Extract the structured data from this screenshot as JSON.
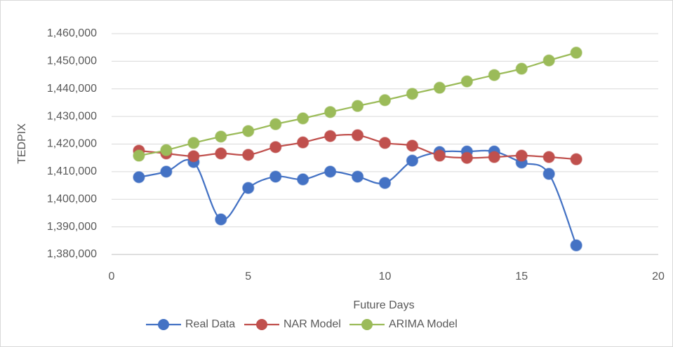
{
  "chart_data": {
    "type": "line",
    "x_label": "Future Days",
    "y_label": "TEDPIX",
    "x": [
      1,
      2,
      3,
      4,
      5,
      6,
      7,
      8,
      9,
      10,
      11,
      12,
      13,
      14,
      15,
      16,
      17
    ],
    "series": [
      {
        "name": "Real Data",
        "color": "#4472c4",
        "values": [
          1408000,
          1410000,
          1413500,
          1392700,
          1404100,
          1408200,
          1407200,
          1410000,
          1408200,
          1405900,
          1414000,
          1417100,
          1417300,
          1417300,
          1413300,
          1409200,
          1383300
        ]
      },
      {
        "name": "NAR Model",
        "color": "#c0504d",
        "values": [
          1417600,
          1416600,
          1415600,
          1416600,
          1416100,
          1418900,
          1420600,
          1422900,
          1423200,
          1420400,
          1419400,
          1415800,
          1415000,
          1415300,
          1415800,
          1415300,
          1414500
        ]
      },
      {
        "name": "ARIMA Model",
        "color": "#9bbb59",
        "values": [
          1415800,
          1417800,
          1420400,
          1422700,
          1424700,
          1427200,
          1429300,
          1431600,
          1433800,
          1435900,
          1438200,
          1440400,
          1442700,
          1445000,
          1447300,
          1450300,
          1453100
        ]
      }
    ],
    "xlim": [
      0,
      20
    ],
    "xticks": [
      0,
      5,
      10,
      15,
      20
    ],
    "ylim": [
      1380000,
      1460000
    ],
    "yticks": [
      {
        "value": 1380000,
        "label": "1,380,000"
      },
      {
        "value": 1390000,
        "label": "1,390,000"
      },
      {
        "value": 1400000,
        "label": "1,400,000"
      },
      {
        "value": 1410000,
        "label": "1,410,000"
      },
      {
        "value": 1420000,
        "label": "1,420,000"
      },
      {
        "value": 1430000,
        "label": "1,430,000"
      },
      {
        "value": 1440000,
        "label": "1,440,000"
      },
      {
        "value": 1450000,
        "label": "1,450,000"
      },
      {
        "value": 1460000,
        "label": "1,460,000"
      }
    ],
    "grid": true,
    "legend": "bottom",
    "smooth": true
  }
}
